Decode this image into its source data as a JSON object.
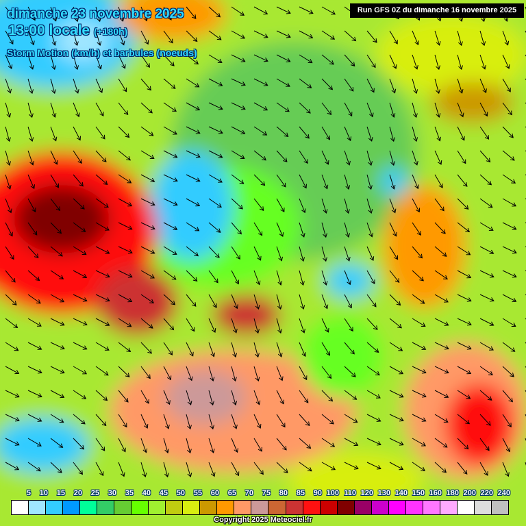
{
  "header": {
    "date": "dimanche 23 novembre 2025",
    "time": "13:00 locale",
    "lead": "(+180h)",
    "parameter": "Storm Motion (km/h) et barbules (noeuds)",
    "run": "Run GFS 0Z du dimanche 16 novembre 2025"
  },
  "legend": {
    "unit": "km/h",
    "labels": [
      "5",
      "10",
      "15",
      "20",
      "25",
      "30",
      "35",
      "40",
      "45",
      "50",
      "55",
      "60",
      "65",
      "70",
      "75",
      "80",
      "85",
      "90",
      "100",
      "110",
      "120",
      "130",
      "140",
      "150",
      "160",
      "180",
      "200",
      "220",
      "240"
    ],
    "colors": [
      "#ffffff",
      "#a0e6ff",
      "#33ccff",
      "#0099ff",
      "#00ff99",
      "#33cc66",
      "#66cc33",
      "#66ff00",
      "#a0f030",
      "#c0cc10",
      "#d8ee10",
      "#cc9900",
      "#ff9900",
      "#ff9966",
      "#cc9999",
      "#cc6633",
      "#cc3333",
      "#ff1111",
      "#cc0000",
      "#800000",
      "#990066",
      "#cc00cc",
      "#ff00ff",
      "#ff33ff",
      "#ff77ff",
      "#ffaaff",
      "#ffffff",
      "#dddddd",
      "#c0c0c0"
    ]
  },
  "copyright": "Copyright 2025 Meteociel.fr"
}
